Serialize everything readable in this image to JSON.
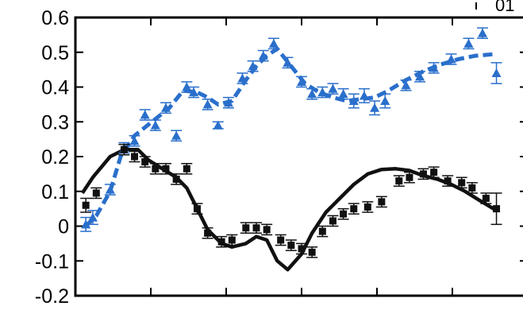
{
  "chart_data": {
    "type": "scatter",
    "title": "",
    "xlabel": "",
    "ylabel": "",
    "ylim": [
      -0.2,
      0.6
    ],
    "yticks": [
      "-0.2",
      "-0.1",
      "0",
      "0.1",
      "0.2",
      "0.3",
      "0.4",
      "0.5",
      "0.6"
    ],
    "xtick_count": 5,
    "x_ticks_labeled": false,
    "grid": false,
    "corner_label": "01",
    "series": [
      {
        "marker": "triangle",
        "color": "#2a6fcb",
        "points": [
          [
            0.03,
            0.005,
            0.02
          ],
          [
            0.05,
            0.025,
            0.02
          ],
          [
            0.1,
            0.105,
            0.015
          ],
          [
            0.14,
            0.225,
            0.015
          ],
          [
            0.17,
            0.245,
            0.015
          ],
          [
            0.2,
            0.32,
            0.015
          ],
          [
            0.23,
            0.29,
            0.015
          ],
          [
            0.26,
            0.34,
            0.015
          ],
          [
            0.29,
            0.26,
            0.015
          ],
          [
            0.32,
            0.4,
            0.015
          ],
          [
            0.34,
            0.385,
            0.015
          ],
          [
            0.38,
            0.35,
            0.015
          ],
          [
            0.41,
            0.29,
            0.01
          ],
          [
            0.44,
            0.355,
            0.015
          ],
          [
            0.48,
            0.425,
            0.015
          ],
          [
            0.51,
            0.46,
            0.015
          ],
          [
            0.54,
            0.49,
            0.015
          ],
          [
            0.57,
            0.525,
            0.015
          ],
          [
            0.61,
            0.47,
            0.015
          ],
          [
            0.65,
            0.415,
            0.015
          ],
          [
            0.68,
            0.38,
            0.015
          ],
          [
            0.71,
            0.385,
            0.015
          ],
          [
            0.74,
            0.395,
            0.015
          ],
          [
            0.77,
            0.38,
            0.015
          ],
          [
            0.8,
            0.36,
            0.02
          ],
          [
            0.83,
            0.375,
            0.02
          ],
          [
            0.86,
            0.34,
            0.02
          ],
          [
            0.89,
            0.36,
            0.02
          ],
          [
            0.95,
            0.405,
            0.015
          ],
          [
            0.99,
            0.43,
            0.015
          ],
          [
            1.03,
            0.455,
            0.015
          ],
          [
            1.08,
            0.48,
            0.015
          ],
          [
            1.13,
            0.525,
            0.015
          ],
          [
            1.17,
            0.555,
            0.015
          ],
          [
            1.21,
            0.44,
            0.03
          ]
        ]
      },
      {
        "marker": "square",
        "color": "#111111",
        "points": [
          [
            0.03,
            0.06,
            0.02
          ],
          [
            0.06,
            0.095,
            0.015
          ],
          [
            0.14,
            0.22,
            0.015
          ],
          [
            0.17,
            0.2,
            0.015
          ],
          [
            0.2,
            0.185,
            0.015
          ],
          [
            0.23,
            0.165,
            0.015
          ],
          [
            0.26,
            0.165,
            0.015
          ],
          [
            0.29,
            0.135,
            0.015
          ],
          [
            0.32,
            0.165,
            0.015
          ],
          [
            0.35,
            0.05,
            0.015
          ],
          [
            0.38,
            -0.02,
            0.015
          ],
          [
            0.42,
            -0.045,
            0.015
          ],
          [
            0.45,
            -0.04,
            0.015
          ],
          [
            0.49,
            -0.005,
            0.015
          ],
          [
            0.52,
            -0.005,
            0.015
          ],
          [
            0.55,
            -0.01,
            0.015
          ],
          [
            0.59,
            -0.04,
            0.015
          ],
          [
            0.62,
            -0.055,
            0.015
          ],
          [
            0.65,
            -0.065,
            0.015
          ],
          [
            0.68,
            -0.075,
            0.015
          ],
          [
            0.71,
            -0.015,
            0.015
          ],
          [
            0.74,
            0.015,
            0.015
          ],
          [
            0.77,
            0.035,
            0.015
          ],
          [
            0.8,
            0.05,
            0.015
          ],
          [
            0.84,
            0.055,
            0.015
          ],
          [
            0.88,
            0.07,
            0.015
          ],
          [
            0.93,
            0.13,
            0.015
          ],
          [
            0.96,
            0.14,
            0.015
          ],
          [
            1.0,
            0.15,
            0.015
          ],
          [
            1.03,
            0.155,
            0.015
          ],
          [
            1.07,
            0.13,
            0.015
          ],
          [
            1.11,
            0.125,
            0.015
          ],
          [
            1.14,
            0.11,
            0.015
          ],
          [
            1.18,
            0.08,
            0.015
          ],
          [
            1.21,
            0.05,
            0.045
          ]
        ]
      }
    ],
    "curves": [
      {
        "style": "dashed",
        "color": "#2a6fcb",
        "points": [
          [
            0.03,
            0.0
          ],
          [
            0.06,
            0.03
          ],
          [
            0.1,
            0.1
          ],
          [
            0.13,
            0.2
          ],
          [
            0.17,
            0.26
          ],
          [
            0.22,
            0.3
          ],
          [
            0.27,
            0.34
          ],
          [
            0.31,
            0.39
          ],
          [
            0.35,
            0.385
          ],
          [
            0.38,
            0.37
          ],
          [
            0.41,
            0.35
          ],
          [
            0.45,
            0.36
          ],
          [
            0.49,
            0.42
          ],
          [
            0.52,
            0.46
          ],
          [
            0.55,
            0.49
          ],
          [
            0.58,
            0.51
          ],
          [
            0.62,
            0.46
          ],
          [
            0.66,
            0.41
          ],
          [
            0.7,
            0.385
          ],
          [
            0.74,
            0.37
          ],
          [
            0.78,
            0.36
          ],
          [
            0.82,
            0.365
          ],
          [
            0.86,
            0.37
          ],
          [
            0.9,
            0.39
          ],
          [
            0.95,
            0.42
          ],
          [
            1.0,
            0.445
          ],
          [
            1.05,
            0.465
          ],
          [
            1.1,
            0.48
          ],
          [
            1.15,
            0.49
          ],
          [
            1.21,
            0.495
          ]
        ]
      },
      {
        "style": "solid",
        "color": "#111111",
        "points": [
          [
            0.02,
            0.095
          ],
          [
            0.05,
            0.14
          ],
          [
            0.1,
            0.2
          ],
          [
            0.14,
            0.22
          ],
          [
            0.18,
            0.22
          ],
          [
            0.21,
            0.19
          ],
          [
            0.25,
            0.165
          ],
          [
            0.29,
            0.14
          ],
          [
            0.32,
            0.11
          ],
          [
            0.35,
            0.05
          ],
          [
            0.38,
            -0.01
          ],
          [
            0.42,
            -0.05
          ],
          [
            0.45,
            -0.06
          ],
          [
            0.49,
            -0.05
          ],
          [
            0.52,
            -0.03
          ],
          [
            0.55,
            -0.04
          ],
          [
            0.58,
            -0.1
          ],
          [
            0.61,
            -0.125
          ],
          [
            0.65,
            -0.08
          ],
          [
            0.68,
            -0.02
          ],
          [
            0.72,
            0.04
          ],
          [
            0.76,
            0.08
          ],
          [
            0.8,
            0.12
          ],
          [
            0.84,
            0.15
          ],
          [
            0.88,
            0.163
          ],
          [
            0.92,
            0.165
          ],
          [
            0.96,
            0.16
          ],
          [
            1.0,
            0.145
          ],
          [
            1.04,
            0.135
          ],
          [
            1.08,
            0.12
          ],
          [
            1.12,
            0.1
          ],
          [
            1.16,
            0.075
          ],
          [
            1.21,
            0.045
          ]
        ]
      }
    ]
  }
}
